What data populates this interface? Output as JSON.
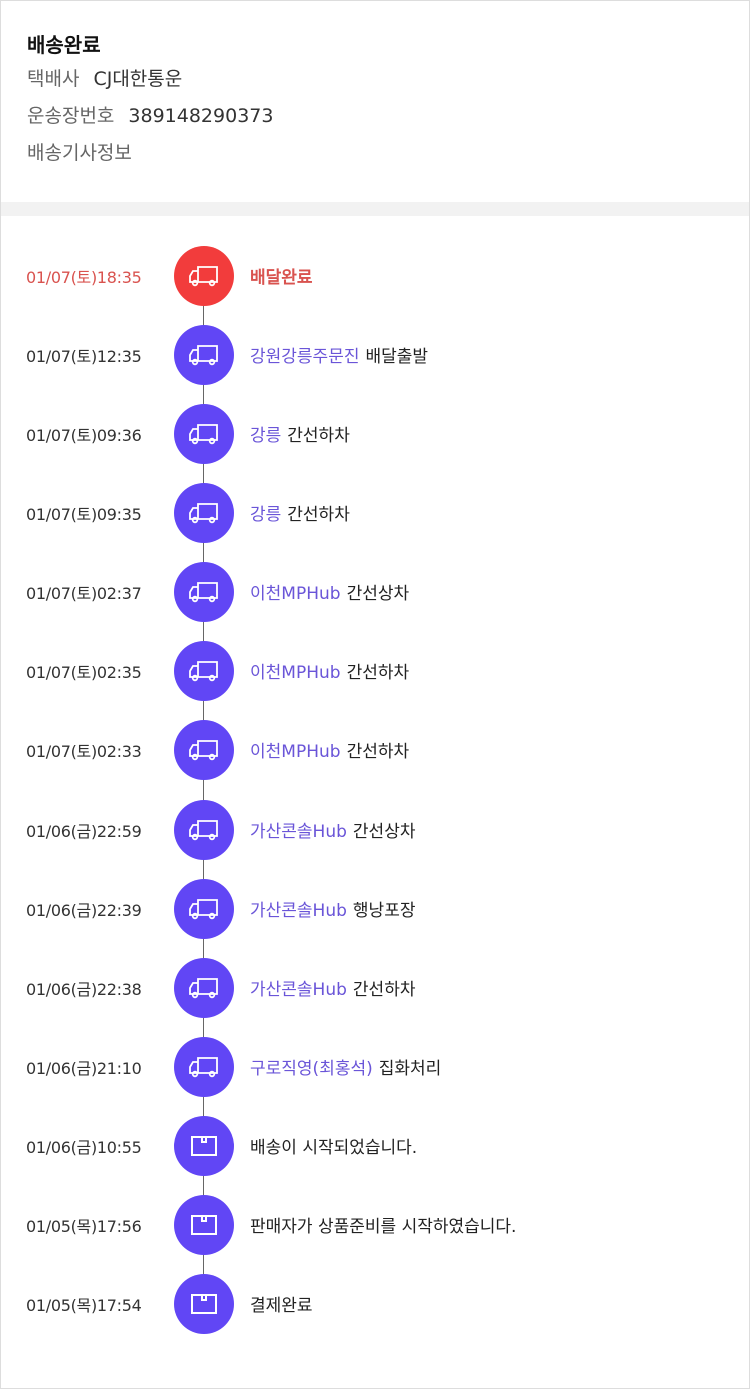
{
  "header": {
    "title": "배송완료",
    "courier_label": "택배사",
    "courier_value": "CJ대한통운",
    "tracking_label": "운송장번호",
    "tracking_value": "389148290373",
    "driver_info_label": "배송기사정보"
  },
  "colors": {
    "active": "#f23c3c",
    "step": "#6146f5",
    "location_text": "#6a55d8"
  },
  "timeline": [
    {
      "time": "01/07(토)18:35",
      "location": "",
      "status": "배달완료",
      "icon": "truck-icon",
      "active": true
    },
    {
      "time": "01/07(토)12:35",
      "location": "강원강릉주문진",
      "status": "배달출발",
      "icon": "truck-icon"
    },
    {
      "time": "01/07(토)09:36",
      "location": "강릉",
      "status": "간선하차",
      "icon": "truck-icon"
    },
    {
      "time": "01/07(토)09:35",
      "location": "강릉",
      "status": "간선하차",
      "icon": "truck-icon"
    },
    {
      "time": "01/07(토)02:37",
      "location": "이천MPHub",
      "status": "간선상차",
      "icon": "truck-icon"
    },
    {
      "time": "01/07(토)02:35",
      "location": "이천MPHub",
      "status": "간선하차",
      "icon": "truck-icon"
    },
    {
      "time": "01/07(토)02:33",
      "location": "이천MPHub",
      "status": "간선하차",
      "icon": "truck-icon"
    },
    {
      "time": "01/06(금)22:59",
      "location": "가산콘솔Hub",
      "status": "간선상차",
      "icon": "truck-icon"
    },
    {
      "time": "01/06(금)22:39",
      "location": "가산콘솔Hub",
      "status": "행낭포장",
      "icon": "truck-icon"
    },
    {
      "time": "01/06(금)22:38",
      "location": "가산콘솔Hub",
      "status": "간선하차",
      "icon": "truck-icon"
    },
    {
      "time": "01/06(금)21:10",
      "location": "구로직영(최홍석)",
      "status": "집화처리",
      "icon": "truck-icon"
    },
    {
      "time": "01/06(금)10:55",
      "location": "",
      "status": "배송이 시작되었습니다.",
      "icon": "box-icon"
    },
    {
      "time": "01/05(목)17:56",
      "location": "",
      "status": "판매자가 상품준비를 시작하였습니다.",
      "icon": "box-icon"
    },
    {
      "time": "01/05(목)17:54",
      "location": "",
      "status": "결제완료",
      "icon": "box-icon"
    }
  ]
}
